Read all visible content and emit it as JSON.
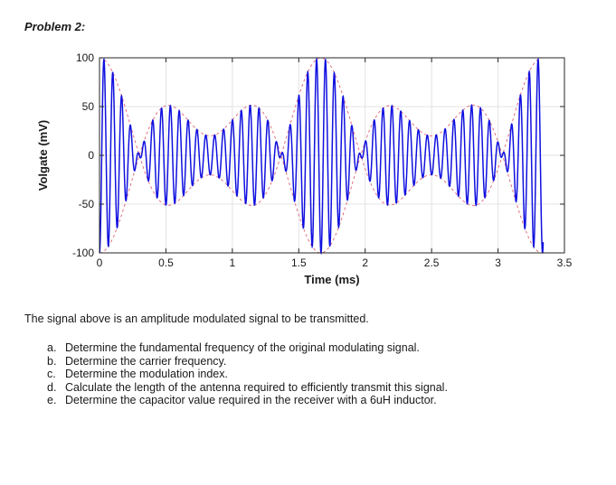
{
  "heading": "Problem 2:",
  "chart_data": {
    "type": "line",
    "title": "",
    "xlabel": "Time (ms)",
    "ylabel": "Volgate (mV)",
    "xlim": [
      0,
      3.5
    ],
    "ylim": [
      -100,
      100
    ],
    "xticks": [
      0,
      0.5,
      1,
      1.5,
      2,
      2.5,
      3,
      3.5
    ],
    "xtick_labels": [
      "0",
      "0.5",
      "1",
      "1.5",
      "2",
      "2.5",
      "3",
      "3.5"
    ],
    "yticks": [
      -100,
      -50,
      0,
      50,
      100
    ],
    "ytick_labels": [
      "-100",
      "-50",
      "0",
      "50",
      "100"
    ],
    "grid": true,
    "time_end": 3.34,
    "carrier_period": 0.0667,
    "envelope_components": [
      {
        "amplitude": 60,
        "period": 1.667,
        "phase": 0
      },
      {
        "amplitude": 40,
        "period": 0.833,
        "phase": 0
      }
    ],
    "series": [
      {
        "values": "AM signal: carrier of period 0.0667 ms modulated by the envelope",
        "color": "#1010e0"
      },
      {
        "values": "upper envelope",
        "color": "#e06070"
      },
      {
        "values": "lower envelope",
        "color": "#e06070"
      }
    ]
  },
  "intro": "The signal above is an amplitude modulated signal to be transmitted.",
  "questions": [
    {
      "letter": "a.",
      "text": "Determine the fundamental frequency of the original modulating signal."
    },
    {
      "letter": "b.",
      "text": "Determine the carrier frequency."
    },
    {
      "letter": "c.",
      "text": "Determine the modulation index."
    },
    {
      "letter": "d.",
      "text": "Calculate the length of the antenna required to efficiently transmit this signal."
    },
    {
      "letter": "e.",
      "text": "Determine the capacitor value required in the receiver with a 6uH inductor."
    }
  ]
}
